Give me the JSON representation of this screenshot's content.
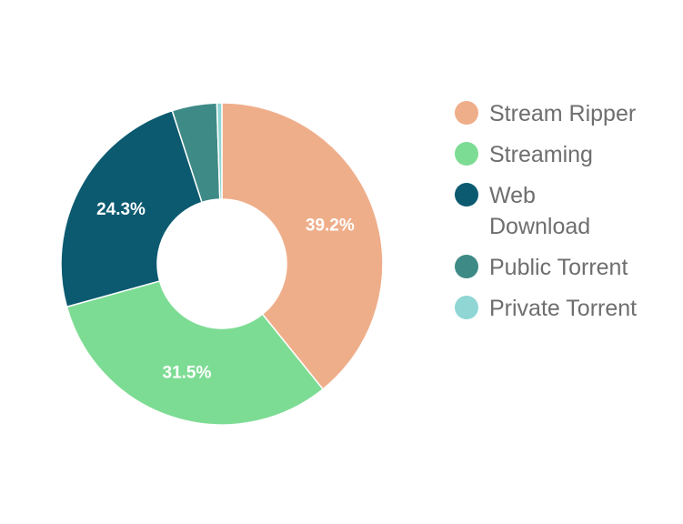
{
  "chart_data": {
    "type": "pie",
    "title": "",
    "categories": [
      "Stream Ripper",
      "Streaming",
      "Web Download",
      "Public Torrent",
      "Private Torrent"
    ],
    "values": [
      39.2,
      31.5,
      24.3,
      4.5,
      0.5
    ],
    "unit": "%",
    "data_labels": [
      "39.2%",
      "31.5%",
      "24.3%",
      "",
      ""
    ],
    "colors": [
      "#EFAE8A",
      "#7DDC94",
      "#0B5A70",
      "#3E8A86",
      "#8FD6D4"
    ],
    "donut": true,
    "legend_position": "right"
  }
}
